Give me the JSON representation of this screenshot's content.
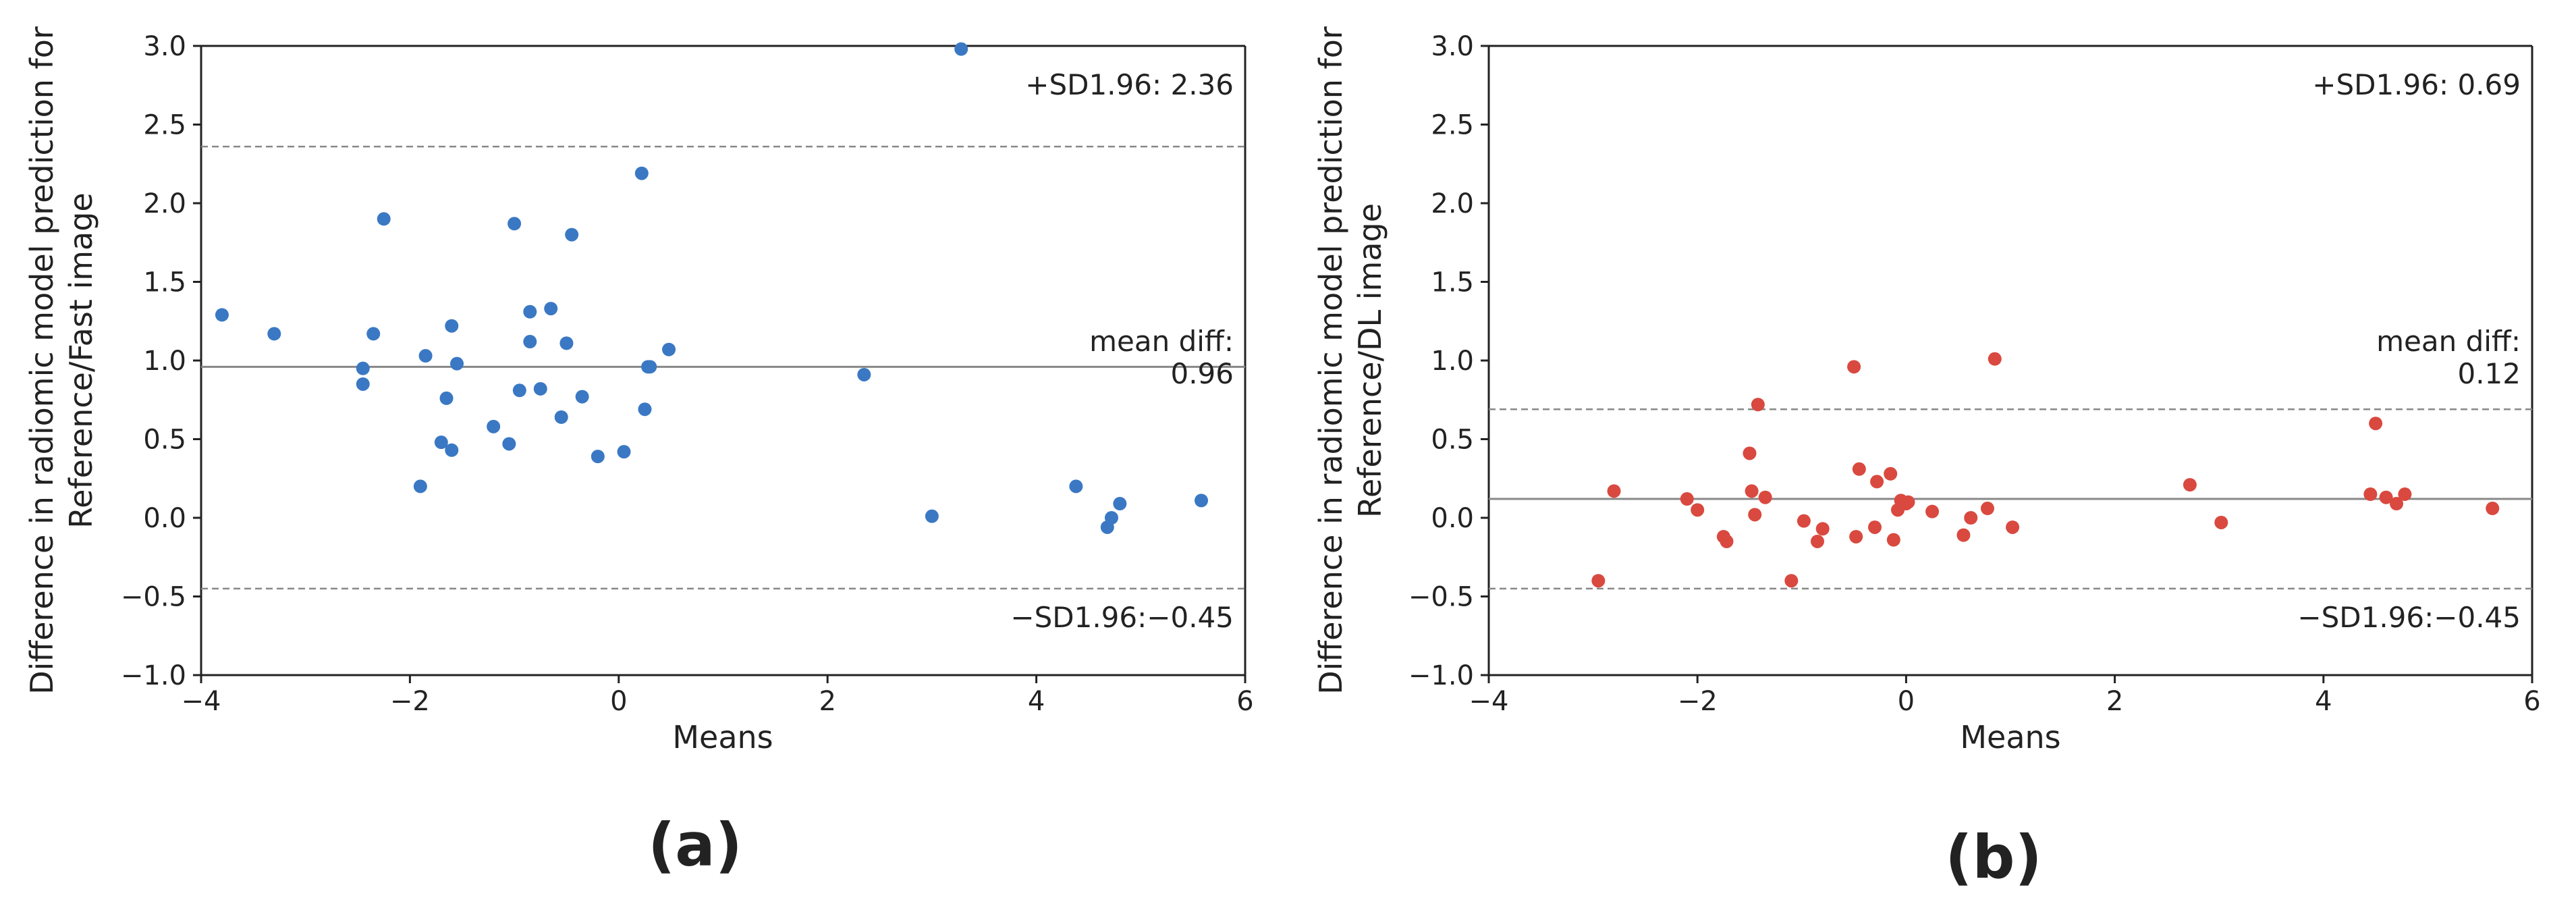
{
  "colors": {
    "series_a": "#3a78c4",
    "series_b": "#d9493f",
    "mean_line": "#888888",
    "sd_line": "#888888",
    "axis": "#222222"
  },
  "chart_data": [
    {
      "type": "scatter",
      "subtitle": "(a)",
      "title": "",
      "xlabel": "Means",
      "ylabel": [
        "Difference in radiomic model prediction for",
        "Reference/Fast image"
      ],
      "xlim": [
        -4,
        6
      ],
      "ylim": [
        -1.0,
        3.0
      ],
      "xticks": [
        -4,
        -2,
        0,
        2,
        4,
        6
      ],
      "xtick_labels": [
        "−4",
        "−2",
        "0",
        "2",
        "4",
        "6"
      ],
      "yticks": [
        -1.0,
        -0.5,
        0.0,
        0.5,
        1.0,
        1.5,
        2.0,
        2.5,
        3.0
      ],
      "ytick_labels": [
        "−1.0",
        "−0.5",
        "0.0",
        "0.5",
        "1.0",
        "1.5",
        "2.0",
        "2.5",
        "3.0"
      ],
      "mean_diff": 0.96,
      "upper_loa": 2.36,
      "lower_loa": -0.45,
      "annotations": {
        "upper": "+SD1.96: 2.36",
        "mean_line1": "mean diff:",
        "mean_line2": "0.96",
        "lower": "−SD1.96:−0.45"
      },
      "x": [
        -3.8,
        -3.3,
        -2.25,
        -2.35,
        -2.45,
        -2.45,
        -1.85,
        -1.9,
        -1.6,
        -1.55,
        -1.65,
        -1.7,
        -1.6,
        -1.2,
        -1.05,
        -1.0,
        -0.95,
        -0.85,
        -0.85,
        -0.75,
        -0.65,
        -0.55,
        -0.5,
        -0.45,
        -0.35,
        -0.2,
        0.05,
        0.25,
        0.28,
        0.3,
        0.48,
        0.22,
        2.35,
        3.0,
        3.28,
        4.38,
        4.68,
        4.72,
        4.8,
        5.58
      ],
      "y": [
        1.29,
        1.17,
        1.9,
        1.17,
        0.95,
        0.85,
        1.03,
        0.2,
        1.22,
        0.98,
        0.76,
        0.48,
        0.43,
        0.58,
        0.47,
        1.87,
        0.81,
        1.12,
        1.31,
        0.82,
        1.33,
        0.64,
        1.11,
        1.8,
        0.77,
        0.39,
        0.42,
        0.69,
        0.96,
        0.96,
        1.07,
        2.19,
        0.91,
        0.01,
        2.98,
        0.2,
        -0.06,
        0.0,
        0.09,
        0.11
      ]
    },
    {
      "type": "scatter",
      "subtitle": "(b)",
      "title": "",
      "xlabel": "Means",
      "ylabel": [
        "Difference in radiomic model prediction for",
        "Reference/DL image"
      ],
      "xlim": [
        -4,
        6
      ],
      "ylim": [
        -1.0,
        3.0
      ],
      "xticks": [
        -4,
        -2,
        0,
        2,
        4,
        6
      ],
      "xtick_labels": [
        "−4",
        "−2",
        "0",
        "2",
        "4",
        "6"
      ],
      "yticks": [
        -1.0,
        -0.5,
        0.0,
        0.5,
        1.0,
        1.5,
        2.0,
        2.5,
        3.0
      ],
      "ytick_labels": [
        "−1.0",
        "−0.5",
        "0.0",
        "0.5",
        "1.0",
        "1.5",
        "2.0",
        "2.5",
        "3.0"
      ],
      "mean_diff": 0.12,
      "upper_loa": 0.69,
      "lower_loa": -0.45,
      "annotations": {
        "upper": "+SD1.96: 0.69",
        "mean_line1": "mean diff:",
        "mean_line2": "0.12",
        "lower": "−SD1.96:−0.45"
      },
      "x": [
        -2.95,
        -2.8,
        -2.1,
        -2.0,
        -1.75,
        -1.72,
        -1.5,
        -1.48,
        -1.45,
        -1.42,
        -1.35,
        -1.1,
        -0.98,
        -0.85,
        -0.8,
        -0.5,
        -0.48,
        -0.45,
        -0.3,
        -0.28,
        -0.15,
        -0.12,
        -0.08,
        -0.05,
        0.0,
        0.02,
        0.25,
        0.55,
        0.62,
        0.78,
        0.85,
        1.02,
        2.72,
        3.02,
        4.45,
        4.5,
        4.6,
        4.7,
        4.78,
        5.62
      ],
      "y": [
        -0.4,
        0.17,
        0.12,
        0.05,
        -0.12,
        -0.15,
        0.41,
        0.17,
        0.02,
        0.72,
        0.13,
        -0.4,
        -0.02,
        -0.15,
        -0.07,
        0.96,
        -0.12,
        0.31,
        -0.06,
        0.23,
        0.28,
        -0.14,
        0.05,
        0.11,
        0.09,
        0.1,
        0.04,
        -0.11,
        0.0,
        0.06,
        1.01,
        -0.06,
        0.21,
        -0.03,
        0.15,
        0.6,
        0.13,
        0.09,
        0.15,
        0.06
      ]
    }
  ]
}
